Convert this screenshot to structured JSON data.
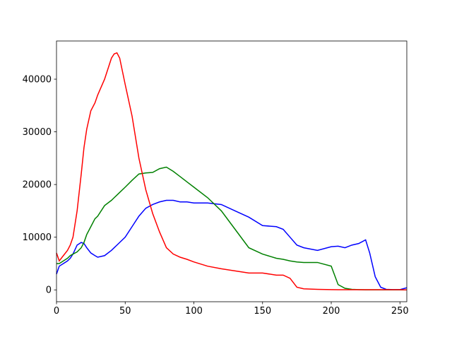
{
  "chart_data": {
    "type": "line",
    "x": [
      0,
      2,
      5,
      8,
      10,
      12,
      15,
      18,
      20,
      22,
      25,
      28,
      30,
      35,
      40,
      42,
      44,
      46,
      50,
      55,
      60,
      65,
      70,
      75,
      80,
      85,
      90,
      95,
      100,
      110,
      120,
      130,
      140,
      150,
      160,
      165,
      170,
      175,
      180,
      190,
      200,
      205,
      210,
      215,
      220,
      225,
      228,
      232,
      236,
      240,
      245,
      250,
      255
    ],
    "series": [
      {
        "name": "b",
        "color": "#0000ff",
        "values": [
          3000,
          4500,
          5000,
          5500,
          6000,
          6800,
          8500,
          9000,
          8800,
          8000,
          7000,
          6500,
          6200,
          6500,
          7500,
          8000,
          8500,
          9000,
          10000,
          12000,
          14000,
          15500,
          16200,
          16700,
          17000,
          17000,
          16700,
          16700,
          16500,
          16500,
          16200,
          15000,
          13800,
          12200,
          12000,
          11500,
          10000,
          8500,
          8000,
          7500,
          8200,
          8300,
          8000,
          8500,
          8800,
          9500,
          7000,
          2500,
          500,
          100,
          50,
          50,
          400
        ]
      },
      {
        "name": "g",
        "color": "#008000",
        "values": [
          5000,
          5000,
          5500,
          6000,
          6500,
          6800,
          7200,
          8000,
          9000,
          10500,
          12000,
          13500,
          14000,
          16000,
          17000,
          17500,
          18000,
          18500,
          19500,
          20800,
          22000,
          22200,
          22300,
          23000,
          23300,
          22500,
          21500,
          20500,
          19500,
          17500,
          15000,
          11500,
          8000,
          6800,
          6000,
          5800,
          5500,
          5300,
          5200,
          5200,
          4500,
          1000,
          300,
          100,
          50,
          20,
          20,
          20,
          20,
          20,
          20,
          20,
          0
        ]
      },
      {
        "name": "r",
        "color": "#ff0000",
        "values": [
          7000,
          5500,
          6500,
          7500,
          8500,
          10000,
          15000,
          22000,
          27000,
          30500,
          34000,
          35500,
          37000,
          40000,
          44000,
          44800,
          45000,
          44000,
          39000,
          33000,
          25000,
          19000,
          14500,
          11000,
          8000,
          6800,
          6200,
          5800,
          5300,
          4500,
          4000,
          3600,
          3200,
          3200,
          2800,
          2800,
          2200,
          500,
          200,
          100,
          50,
          30,
          30,
          30,
          30,
          30,
          30,
          30,
          30,
          30,
          30,
          30,
          0
        ]
      }
    ],
    "xlim": [
      0,
      255
    ],
    "xticks": [
      0,
      50,
      100,
      150,
      200,
      250
    ],
    "ylim": [
      -2250,
      47250
    ],
    "yticks": [
      0,
      10000,
      20000,
      30000,
      40000
    ]
  }
}
